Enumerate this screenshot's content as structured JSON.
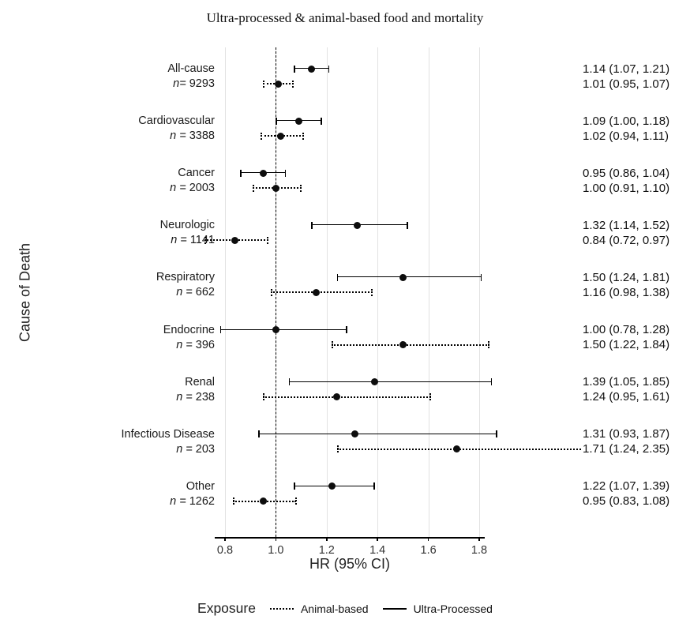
{
  "title": "Ultra-processed & animal-based food and mortality",
  "axes": {
    "y_label": "Cause of Death",
    "x_label": "HR (95% CI)",
    "x_ticks": [
      0.8,
      1.0,
      1.2,
      1.4,
      1.6,
      1.8
    ],
    "x_range": [
      0.8,
      1.8
    ],
    "reference_line": 1.0,
    "grid": "vertical-light-gray"
  },
  "legend": {
    "title": "Exposure",
    "items": [
      {
        "label": "Animal-based",
        "style": "dotted"
      },
      {
        "label": "Ultra-Processed",
        "style": "solid"
      }
    ]
  },
  "chart_data": {
    "type": "forest-errorbar",
    "title": "Ultra-processed & animal-based food and mortality",
    "xlabel": "HR (95% CI)",
    "ylabel": "Cause of Death",
    "xlim": [
      0.75,
      1.9
    ],
    "x_ticks": [
      0.8,
      1.0,
      1.2,
      1.4,
      1.6,
      1.8
    ],
    "reference_line": 1.0,
    "series_order": [
      "Ultra-Processed (solid, top row)",
      "Animal-based (dotted, bottom row)"
    ],
    "groups": [
      {
        "cause": "All-cause",
        "n_prefix": "n= ",
        "n_value": "9293",
        "ultra_processed": {
          "hr": 1.14,
          "lo": 1.07,
          "hi": 1.21,
          "label": "1.14 (1.07, 1.21)"
        },
        "animal_based": {
          "hr": 1.01,
          "lo": 0.95,
          "hi": 1.07,
          "label": "1.01 (0.95, 1.07)"
        }
      },
      {
        "cause": "Cardiovascular",
        "n_prefix": "n = ",
        "n_value": "3388",
        "ultra_processed": {
          "hr": 1.09,
          "lo": 1.0,
          "hi": 1.18,
          "label": "1.09 (1.00, 1.18)"
        },
        "animal_based": {
          "hr": 1.02,
          "lo": 0.94,
          "hi": 1.11,
          "label": "1.02 (0.94, 1.11)"
        }
      },
      {
        "cause": "Cancer",
        "n_prefix": "n = ",
        "n_value": "2003",
        "ultra_processed": {
          "hr": 0.95,
          "lo": 0.86,
          "hi": 1.04,
          "label": "0.95 (0.86, 1.04)"
        },
        "animal_based": {
          "hr": 1.0,
          "lo": 0.91,
          "hi": 1.1,
          "label": "1.00 (0.91, 1.10)"
        }
      },
      {
        "cause": "Neurologic",
        "n_prefix": "n = ",
        "n_value": "1141",
        "ultra_processed": {
          "hr": 1.32,
          "lo": 1.14,
          "hi": 1.52,
          "label": "1.32 (1.14, 1.52)"
        },
        "animal_based": {
          "hr": 0.84,
          "lo": 0.72,
          "hi": 0.97,
          "label": "0.84 (0.72, 0.97)"
        }
      },
      {
        "cause": "Respiratory",
        "n_prefix": "n = ",
        "n_value": "662",
        "ultra_processed": {
          "hr": 1.5,
          "lo": 1.24,
          "hi": 1.81,
          "label": "1.50 (1.24, 1.81)"
        },
        "animal_based": {
          "hr": 1.16,
          "lo": 0.98,
          "hi": 1.38,
          "label": "1.16 (0.98, 1.38)"
        }
      },
      {
        "cause": "Endocrine",
        "n_prefix": "n = ",
        "n_value": "396",
        "ultra_processed": {
          "hr": 1.0,
          "lo": 0.78,
          "hi": 1.28,
          "label": "1.00 (0.78, 1.28)"
        },
        "animal_based": {
          "hr": 1.5,
          "lo": 1.22,
          "hi": 1.84,
          "label": "1.50 (1.22, 1.84)"
        }
      },
      {
        "cause": "Renal",
        "n_prefix": "n = ",
        "n_value": "238",
        "ultra_processed": {
          "hr": 1.39,
          "lo": 1.05,
          "hi": 1.85,
          "label": "1.39 (1.05, 1.85)"
        },
        "animal_based": {
          "hr": 1.24,
          "lo": 0.95,
          "hi": 1.61,
          "label": "1.24 (0.95, 1.61)"
        }
      },
      {
        "cause": "Infectious Disease",
        "n_prefix": "n = ",
        "n_value": "203",
        "ultra_processed": {
          "hr": 1.31,
          "lo": 0.93,
          "hi": 1.87,
          "label": "1.31 (0.93, 1.87)"
        },
        "animal_based": {
          "hr": 1.71,
          "lo": 1.24,
          "hi": 2.35,
          "label": "1.71 (1.24, 2.35)"
        }
      },
      {
        "cause": "Other",
        "n_prefix": "n = ",
        "n_value": "1262",
        "ultra_processed": {
          "hr": 1.22,
          "lo": 1.07,
          "hi": 1.39,
          "label": "1.22 (1.07, 1.39)"
        },
        "animal_based": {
          "hr": 0.95,
          "lo": 0.83,
          "hi": 1.08,
          "label": "0.95 (0.83, 1.08)"
        }
      }
    ]
  }
}
